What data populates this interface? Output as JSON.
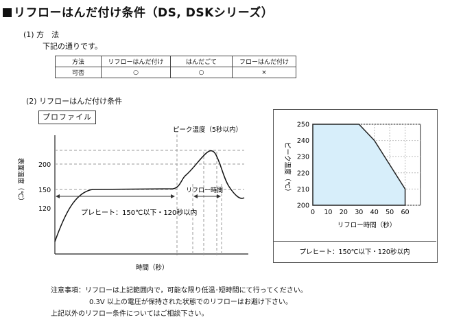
{
  "title": "リフローはんだ付け条件（DS, DSKシリーズ）",
  "method": {
    "heading": "(1) 方　法",
    "desc": "下記の通りです。",
    "table": {
      "headers": [
        "方法",
        "リフローはんだ付け",
        "はんだごて",
        "フローはんだ付け"
      ],
      "row": [
        "可否",
        "○",
        "○",
        "×"
      ]
    }
  },
  "conditions": {
    "heading": "(2) リフローはんだ付け条件",
    "profile_label": "プロファイル"
  },
  "profile_chart": {
    "peak_label": "ピーク温度（5秒以内）",
    "ylabel": "表面温度（℃）",
    "xlabel": "時間（秒）",
    "ticks": [
      "200",
      "150",
      "120"
    ],
    "reflow_label": "リフロー時間",
    "preheat_label": "プレヒート：150℃以下・120秒以内"
  },
  "chart_data": {
    "type": "area",
    "x": [
      0,
      10,
      20,
      30,
      40,
      50,
      60
    ],
    "xticks": [
      "0",
      "10",
      "20",
      "30",
      "40",
      "50",
      "60"
    ],
    "y": [
      250,
      250,
      250,
      250,
      240,
      225,
      210
    ],
    "yticks": [
      "250",
      "240",
      "230",
      "220",
      "210",
      "200"
    ],
    "xlim": [
      0,
      70
    ],
    "ylim": [
      200,
      250
    ],
    "xlabel": "リフロー時間（秒）",
    "ylabel": "ピーク温度（℃）",
    "caption": "プレヒート：150℃以下・120秒以内",
    "fill_color": "#d7eefa",
    "grid": true
  },
  "notes": {
    "line1": "注意事項：リフローは上記範囲内で，可能な限り低温･短時間にて行ってください。",
    "line2": "0.3V 以上の電圧が保持された状態でのリフローはお避け下さい。",
    "line3": "上記以外のリフロー条件についてはご相談下さい。"
  }
}
